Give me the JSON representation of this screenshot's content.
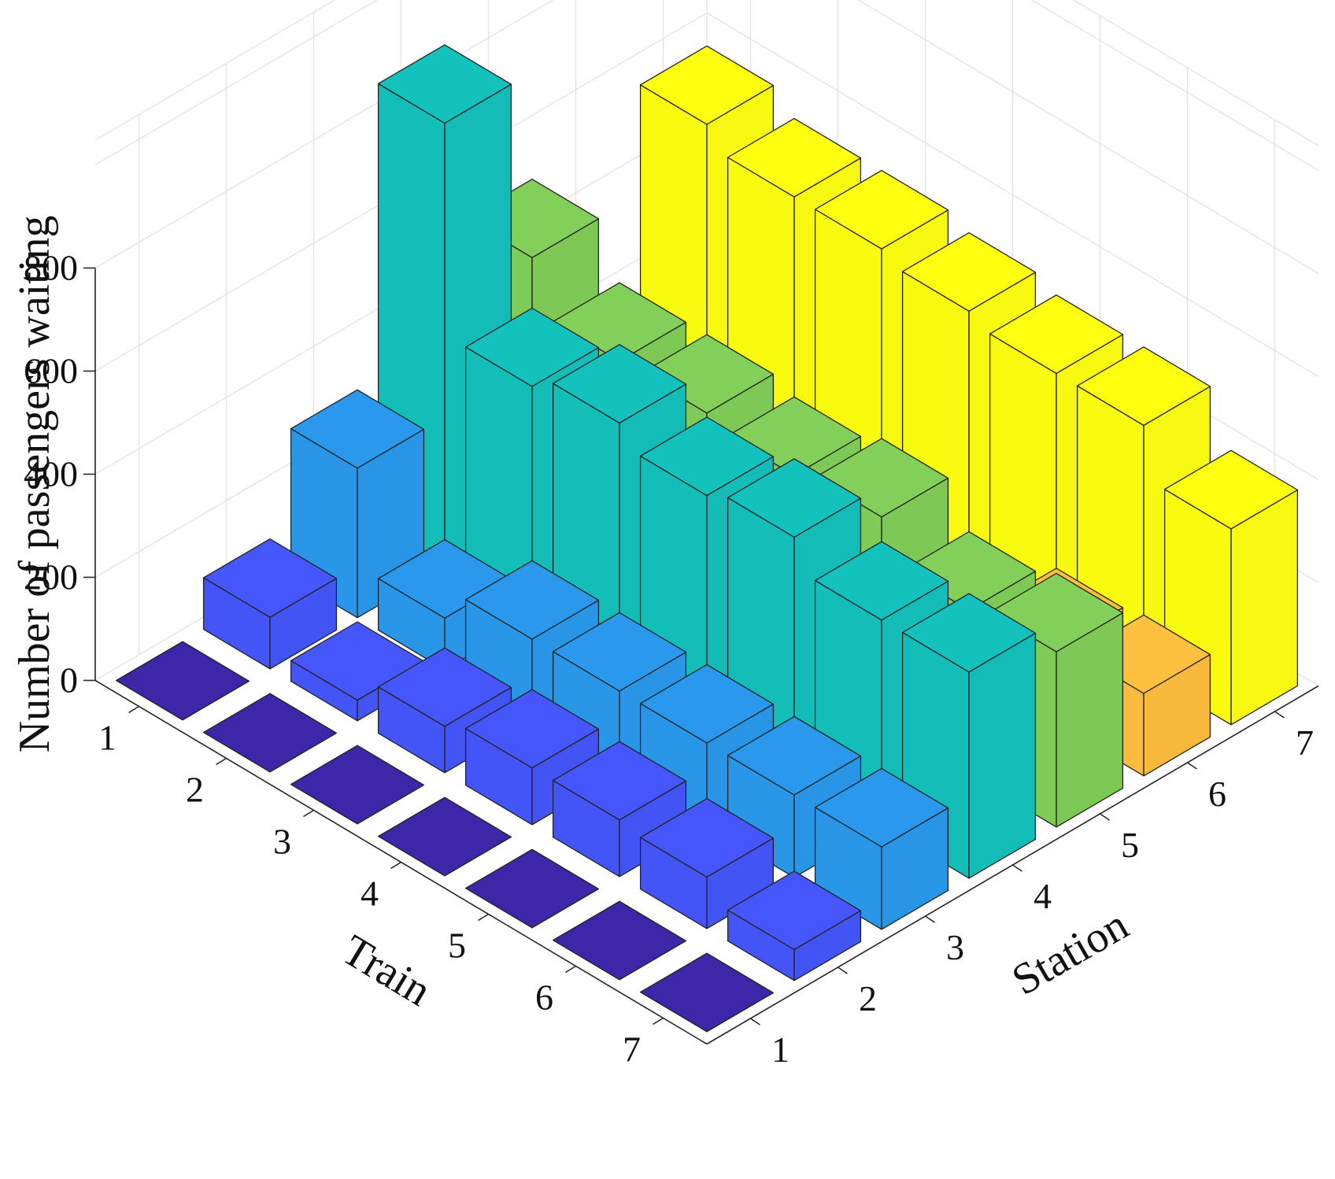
{
  "chart_data": {
    "type": "bar3d",
    "title": "",
    "xlabel": "Station",
    "ylabel": "Train",
    "zlabel": "Number of passengers waiting",
    "stations": [
      "1",
      "2",
      "3",
      "4",
      "5",
      "6",
      "7"
    ],
    "trains": [
      "1",
      "2",
      "3",
      "4",
      "5",
      "6",
      "7"
    ],
    "zlim": [
      0,
      800
    ],
    "zticks": [
      "0",
      "200",
      "400",
      "600",
      "800"
    ],
    "grid": true,
    "series": [
      {
        "station": "1",
        "values": [
          0,
          0,
          0,
          0,
          0,
          0,
          0
        ]
      },
      {
        "station": "2",
        "values": [
          100,
          40,
          90,
          110,
          110,
          100,
          60
        ]
      },
      {
        "station": "3",
        "values": [
          290,
          100,
          160,
          160,
          160,
          160,
          160
        ]
      },
      {
        "station": "4",
        "values": [
          860,
          450,
          480,
          440,
          460,
          400,
          400
        ]
      },
      {
        "station": "5",
        "values": [
          500,
          400,
          400,
          380,
          400,
          320,
          340
        ]
      },
      {
        "station": "6",
        "values": [
          0,
          0,
          170,
          170,
          110,
          150,
          160
        ]
      },
      {
        "station": "7",
        "values": [
          560,
          520,
          520,
          500,
          480,
          480,
          380
        ]
      }
    ],
    "colors": {
      "1": "#3d26a8",
      "2": "#4455f7",
      "3": "#2996e8",
      "4": "#13beb8",
      "5": "#7fcb57",
      "6": "#fcbb3e",
      "7": "#f9fb0f"
    }
  }
}
